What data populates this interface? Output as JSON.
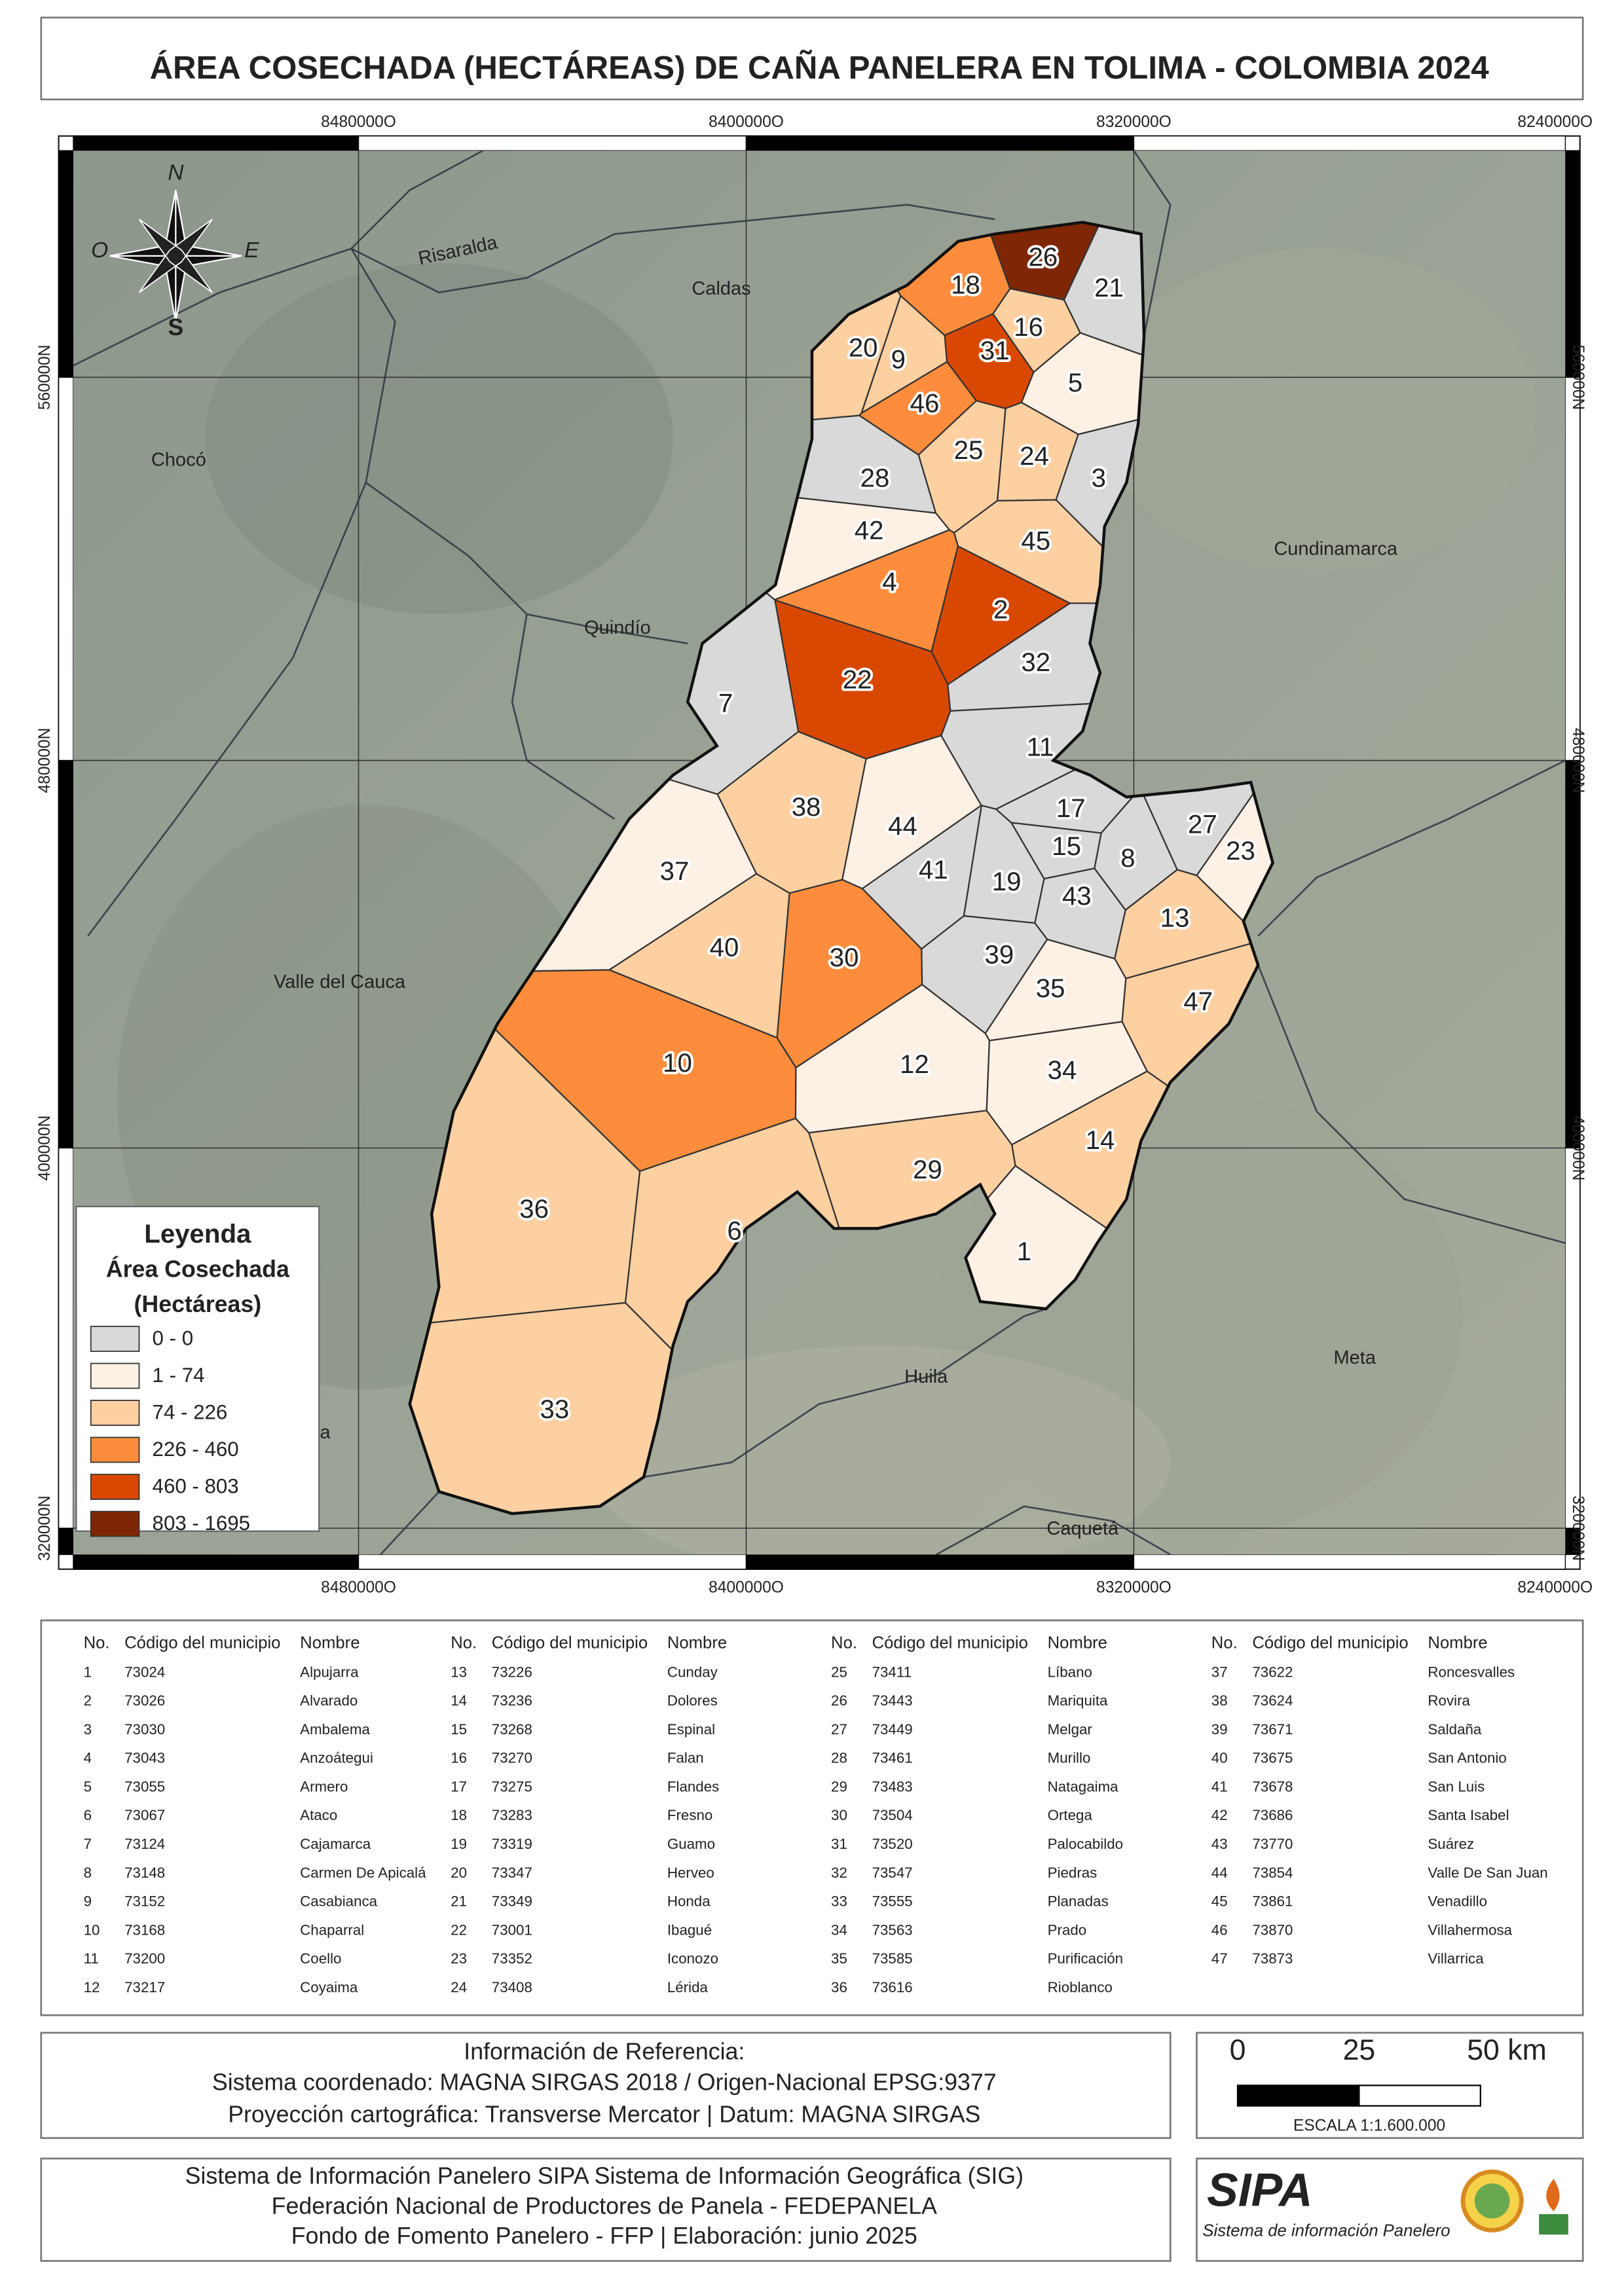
{
  "title": "ÁREA COSECHADA (HECTÁREAS) DE CAÑA PANELERA EN TOLIMA - COLOMBIA 2024",
  "map": {
    "x_labels": [
      "8480000O",
      "8400000O",
      "8320000O",
      "8240000O"
    ],
    "y_labels": [
      "560000N",
      "480000N",
      "400000N",
      "320000N"
    ],
    "regions": [
      "Risaralda",
      "Caldas",
      "Chocó",
      "Quindío",
      "Cundinamarca",
      "Valle del Cauca",
      "Huila",
      "Meta",
      "Cauca",
      "Caquetá"
    ],
    "compass": {
      "north": "N",
      "south": "S",
      "west": "O",
      "east": "E"
    },
    "municipalities": [
      {
        "label": "1",
        "color": "#fdf0e4"
      },
      {
        "label": "2",
        "color": "#d94801"
      },
      {
        "label": "3",
        "color": "#d9d9d9"
      },
      {
        "label": "4",
        "color": "#fd8d3c"
      },
      {
        "label": "5",
        "color": "#fdf0e4"
      },
      {
        "label": "6",
        "color": "#fdd0a2"
      },
      {
        "label": "7",
        "color": "#d9d9d9"
      },
      {
        "label": "8",
        "color": "#d9d9d9"
      },
      {
        "label": "9",
        "color": "#fdd0a2"
      },
      {
        "label": "10",
        "color": "#fd8d3c"
      },
      {
        "label": "11",
        "color": "#d9d9d9"
      },
      {
        "label": "12",
        "color": "#fdf0e4"
      },
      {
        "label": "13",
        "color": "#fdd0a2"
      },
      {
        "label": "14",
        "color": "#fdd0a2"
      },
      {
        "label": "15",
        "color": "#d9d9d9"
      },
      {
        "label": "16",
        "color": "#fdd0a2"
      },
      {
        "label": "17",
        "color": "#d9d9d9"
      },
      {
        "label": "18",
        "color": "#fd8d3c"
      },
      {
        "label": "19",
        "color": "#d9d9d9"
      },
      {
        "label": "20",
        "color": "#fdd0a2"
      },
      {
        "label": "21",
        "color": "#d9d9d9"
      },
      {
        "label": "22",
        "color": "#d94801"
      },
      {
        "label": "23",
        "color": "#fdf0e4"
      },
      {
        "label": "24",
        "color": "#fdd0a2"
      },
      {
        "label": "25",
        "color": "#fdd0a2"
      },
      {
        "label": "26",
        "color": "#7f2704"
      },
      {
        "label": "27",
        "color": "#d9d9d9"
      },
      {
        "label": "28",
        "color": "#d9d9d9"
      },
      {
        "label": "29",
        "color": "#fdd0a2"
      },
      {
        "label": "30",
        "color": "#fd8d3c"
      },
      {
        "label": "31",
        "color": "#d94801"
      },
      {
        "label": "32",
        "color": "#d9d9d9"
      },
      {
        "label": "33",
        "color": "#fdd0a2"
      },
      {
        "label": "34",
        "color": "#fdf0e4"
      },
      {
        "label": "35",
        "color": "#fdf0e4"
      },
      {
        "label": "36",
        "color": "#fdd0a2"
      },
      {
        "label": "37",
        "color": "#fdf0e4"
      },
      {
        "label": "38",
        "color": "#fdd0a2"
      },
      {
        "label": "39",
        "color": "#d9d9d9"
      },
      {
        "label": "40",
        "color": "#fdd0a2"
      },
      {
        "label": "41",
        "color": "#d9d9d9"
      },
      {
        "label": "42",
        "color": "#fdf0e4"
      },
      {
        "label": "43",
        "color": "#d9d9d9"
      },
      {
        "label": "44",
        "color": "#fdf0e4"
      },
      {
        "label": "45",
        "color": "#fdd0a2"
      },
      {
        "label": "46",
        "color": "#fd8d3c"
      },
      {
        "label": "47",
        "color": "#fdd0a2"
      }
    ],
    "legend": {
      "title": "Leyenda",
      "subtitle": "Área Cosechada",
      "unit": "(Hectáreas)",
      "items": [
        {
          "label": "0 - 0",
          "color": "#d9d9d9"
        },
        {
          "label": "1 - 74",
          "color": "#fdf0e4"
        },
        {
          "label": "74 - 226",
          "color": "#fdd0a2"
        },
        {
          "label": "226 - 460",
          "color": "#fd8d3c"
        },
        {
          "label": "460 - 803",
          "color": "#d94801"
        },
        {
          "label": "803 - 1695",
          "color": "#7f2704"
        }
      ]
    }
  },
  "table": {
    "columns": [
      "No.",
      "Código del municipio",
      "Nombre"
    ],
    "rows": [
      [
        "1",
        "73024",
        "Alpujarra"
      ],
      [
        "2",
        "73026",
        "Alvarado"
      ],
      [
        "3",
        "73030",
        "Ambalema"
      ],
      [
        "4",
        "73043",
        "Anzoátegui"
      ],
      [
        "5",
        "73055",
        "Armero"
      ],
      [
        "6",
        "73067",
        "Ataco"
      ],
      [
        "7",
        "73124",
        "Cajamarca"
      ],
      [
        "8",
        "73148",
        "Carmen De Apicalá"
      ],
      [
        "9",
        "73152",
        "Casabianca"
      ],
      [
        "10",
        "73168",
        "Chaparral"
      ],
      [
        "11",
        "73200",
        "Coello"
      ],
      [
        "12",
        "73217",
        "Coyaima"
      ],
      [
        "13",
        "73226",
        "Cunday"
      ],
      [
        "14",
        "73236",
        "Dolores"
      ],
      [
        "15",
        "73268",
        "Espinal"
      ],
      [
        "16",
        "73270",
        "Falan"
      ],
      [
        "17",
        "73275",
        "Flandes"
      ],
      [
        "18",
        "73283",
        "Fresno"
      ],
      [
        "19",
        "73319",
        "Guamo"
      ],
      [
        "20",
        "73347",
        "Herveo"
      ],
      [
        "21",
        "73349",
        "Honda"
      ],
      [
        "22",
        "73001",
        "Ibagué"
      ],
      [
        "23",
        "73352",
        "Iconozo"
      ],
      [
        "24",
        "73408",
        "Lérida"
      ],
      [
        "25",
        "73411",
        "Líbano"
      ],
      [
        "26",
        "73443",
        "Mariquita"
      ],
      [
        "27",
        "73449",
        "Melgar"
      ],
      [
        "28",
        "73461",
        "Murillo"
      ],
      [
        "29",
        "73483",
        "Natagaima"
      ],
      [
        "30",
        "73504",
        "Ortega"
      ],
      [
        "31",
        "73520",
        "Palocabildo"
      ],
      [
        "32",
        "73547",
        "Piedras"
      ],
      [
        "33",
        "73555",
        "Planadas"
      ],
      [
        "34",
        "73563",
        "Prado"
      ],
      [
        "35",
        "73585",
        "Purificación"
      ],
      [
        "36",
        "73616",
        "Rioblanco"
      ],
      [
        "37",
        "73622",
        "Roncesvalles"
      ],
      [
        "38",
        "73624",
        "Rovira"
      ],
      [
        "39",
        "73671",
        "Saldaña"
      ],
      [
        "40",
        "73675",
        "San Antonio"
      ],
      [
        "41",
        "73678",
        "San Luis"
      ],
      [
        "42",
        "73686",
        "Santa Isabel"
      ],
      [
        "43",
        "73770",
        "Suárez"
      ],
      [
        "44",
        "73854",
        "Valle De San Juan"
      ],
      [
        "45",
        "73861",
        "Venadillo"
      ],
      [
        "46",
        "73870",
        "Villahermosa"
      ],
      [
        "47",
        "73873",
        "Villarrica"
      ]
    ]
  },
  "reference": {
    "title": "Información de Referencia:",
    "lines": [
      "Sistema coordenado: MAGNA SIRGAS 2018 / Origen-Nacional EPSG:9377",
      "Proyección cartográfica: Transverse Mercator | Datum: MAGNA SIRGAS"
    ]
  },
  "scale_bar": {
    "labels": [
      "0",
      "25",
      "50 km"
    ],
    "text": "ESCALA 1:1.600.000"
  },
  "footer": {
    "lines": [
      "Sistema de Información Panelero SIPA  Sistema de Información Geográfica (SIG)",
      "Federación Nacional de Productores de Panela - FEDEPANELA",
      "Fondo de Fomento Panelero - FFP |  Elaboración: junio 2025"
    ]
  },
  "logo": {
    "name": "SIPA",
    "tagline": "Sistema de información Panelero"
  }
}
